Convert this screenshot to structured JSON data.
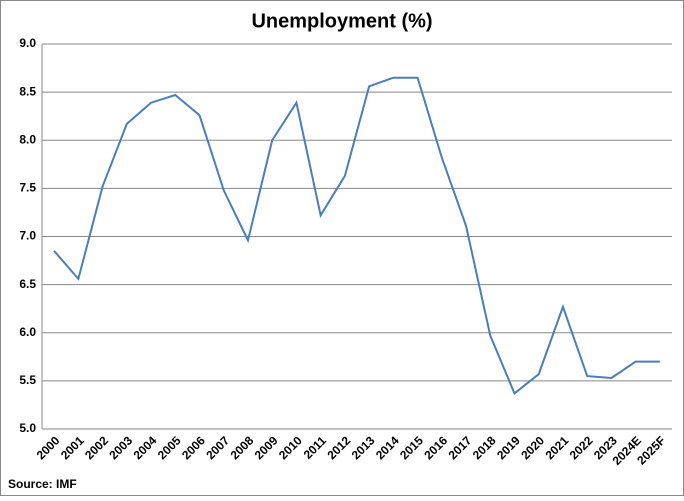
{
  "chart_data": {
    "type": "line",
    "title": "Unemployment (%)",
    "source": "Source: IMF",
    "categories": [
      "2000",
      "2001",
      "2002",
      "2003",
      "2004",
      "2005",
      "2006",
      "2007",
      "2008",
      "2009",
      "2010",
      "2011",
      "2012",
      "2013",
      "2014",
      "2015",
      "2016",
      "2017",
      "2018",
      "2019",
      "2020",
      "2021",
      "2022",
      "2023",
      "2024E",
      "2025F"
    ],
    "values": [
      6.85,
      6.56,
      7.52,
      8.17,
      8.39,
      8.47,
      8.26,
      7.48,
      6.96,
      8.0,
      8.39,
      7.22,
      7.63,
      8.56,
      8.65,
      8.65,
      7.82,
      7.11,
      5.97,
      5.37,
      5.57,
      6.27,
      5.55,
      5.53,
      5.7,
      5.7
    ],
    "color": "#4a7ebb",
    "ylim": [
      5,
      9
    ],
    "yticks": [
      {
        "value": 5,
        "label": "5.0"
      },
      5.5,
      {
        "value": 6,
        "label": "6.0"
      },
      6.5,
      {
        "value": 7,
        "label": "7.0"
      },
      7.5,
      {
        "value": 8,
        "label": "8.0"
      },
      8.5,
      {
        "value": 9,
        "label": "9.0"
      }
    ],
    "grid": true
  }
}
